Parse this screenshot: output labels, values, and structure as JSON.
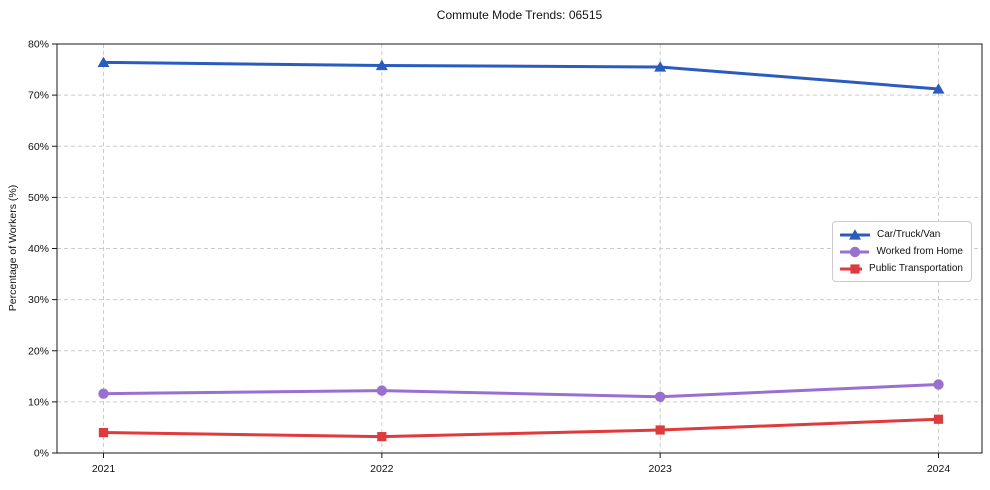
{
  "title": "Commute Mode Trends: 06515",
  "chart_data": {
    "type": "line",
    "title": "Commute Mode Trends: 06515",
    "xlabel": "",
    "ylabel": "Percentage of Workers (%)",
    "categories": [
      "2021",
      "2022",
      "2023",
      "2024"
    ],
    "series": [
      {
        "name": "Car/Truck/Van",
        "marker": "triangle",
        "color": "#2a5cbf",
        "values": [
          76.4,
          75.8,
          75.5,
          71.2
        ]
      },
      {
        "name": "Worked from Home",
        "marker": "circle",
        "color": "#9a6fd2",
        "values": [
          11.6,
          12.2,
          11.0,
          13.4
        ]
      },
      {
        "name": "Public Transportation",
        "marker": "square",
        "color": "#e03a3c",
        "values": [
          4.0,
          3.2,
          4.5,
          6.6
        ]
      }
    ],
    "ylim": [
      0,
      80
    ],
    "yticks": [
      0,
      10,
      20,
      30,
      40,
      50,
      60,
      70,
      80
    ],
    "ytick_labels": [
      "0%",
      "10%",
      "20%",
      "30%",
      "40%",
      "50%",
      "60%",
      "70%",
      "80%"
    ],
    "grid": true,
    "grid_style": "dashed",
    "legend_position": "center-right",
    "colors": {
      "grid": "#cccccc",
      "spine": "#1a1a1a",
      "text": "#111111",
      "background": "#ffffff"
    }
  }
}
